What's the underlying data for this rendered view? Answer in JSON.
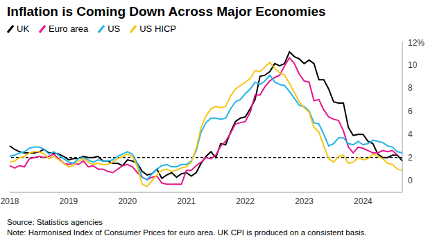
{
  "chart_data": {
    "type": "line",
    "title": "Inflation is Coming Down Across Major Economies",
    "source": "Source: Statistics agencies",
    "note": "Note: Harmonised Index of Consumer Prices for euro area. UK CPI is produced on a consistent basis.",
    "categories": [
      "2018",
      null,
      null,
      null,
      null,
      null,
      null,
      null,
      null,
      null,
      null,
      null,
      "2019",
      null,
      null,
      null,
      null,
      null,
      null,
      null,
      null,
      null,
      null,
      null,
      "2020",
      null,
      null,
      null,
      null,
      null,
      null,
      null,
      null,
      null,
      null,
      null,
      "2021",
      null,
      null,
      null,
      null,
      null,
      null,
      null,
      null,
      null,
      null,
      null,
      "2022",
      null,
      null,
      null,
      null,
      null,
      null,
      null,
      null,
      null,
      null,
      null,
      "2023",
      null,
      null,
      null,
      null,
      null,
      null,
      null,
      null,
      null,
      null,
      null,
      "2024",
      null,
      null,
      null,
      null,
      null,
      null,
      null,
      null
    ],
    "series": [
      {
        "name": "UK",
        "color": "#000000",
        "values": [
          3.0,
          2.7,
          2.5,
          2.4,
          2.4,
          2.4,
          2.5,
          2.7,
          2.4,
          2.4,
          2.3,
          2.1,
          1.8,
          1.9,
          1.9,
          2.1,
          2.0,
          2.0,
          2.1,
          1.7,
          1.7,
          1.5,
          1.5,
          1.3,
          1.8,
          1.7,
          1.5,
          0.8,
          0.5,
          0.6,
          1.0,
          0.2,
          0.5,
          0.7,
          0.3,
          0.6,
          0.7,
          0.4,
          0.7,
          1.5,
          2.1,
          2.5,
          2.0,
          3.2,
          3.1,
          4.2,
          5.1,
          5.4,
          5.5,
          6.2,
          7.0,
          9.0,
          9.1,
          9.4,
          10.1,
          9.9,
          10.1,
          11.1,
          10.7,
          10.5,
          10.1,
          10.4,
          10.1,
          8.7,
          8.7,
          7.9,
          6.8,
          6.7,
          6.7,
          4.6,
          3.9,
          4.0,
          4.0,
          3.4,
          3.2,
          2.3,
          2.0,
          2.0,
          2.2,
          2.2,
          1.7
        ]
      },
      {
        "name": "Euro area",
        "color": "#e6168a",
        "values": [
          1.3,
          1.1,
          1.3,
          1.2,
          1.9,
          2.0,
          2.1,
          2.0,
          2.1,
          2.3,
          1.9,
          1.5,
          1.4,
          1.5,
          1.4,
          1.7,
          1.2,
          1.3,
          1.0,
          1.0,
          0.8,
          0.7,
          1.0,
          1.3,
          1.4,
          1.2,
          0.7,
          0.3,
          0.1,
          0.3,
          0.4,
          -0.2,
          -0.3,
          -0.3,
          -0.3,
          -0.3,
          0.9,
          0.9,
          1.3,
          1.6,
          2.0,
          1.9,
          2.2,
          3.0,
          3.4,
          4.1,
          4.9,
          5.0,
          5.1,
          5.9,
          7.4,
          7.4,
          8.1,
          8.6,
          8.9,
          9.1,
          9.9,
          10.6,
          10.1,
          9.2,
          8.6,
          8.5,
          6.9,
          7.0,
          6.1,
          5.5,
          5.3,
          5.2,
          4.3,
          2.9,
          2.4,
          2.9,
          2.8,
          2.6,
          2.4,
          2.4,
          2.6,
          2.5,
          2.6,
          2.2,
          null
        ]
      },
      {
        "name": "US",
        "color": "#22b4e8",
        "values": [
          2.1,
          2.2,
          2.4,
          2.5,
          2.8,
          2.9,
          2.9,
          2.7,
          2.3,
          2.5,
          2.2,
          1.9,
          1.6,
          1.5,
          1.9,
          2.0,
          1.8,
          1.6,
          1.8,
          1.7,
          1.7,
          1.8,
          2.1,
          2.3,
          2.5,
          2.3,
          1.5,
          0.3,
          0.1,
          0.6,
          1.0,
          1.3,
          1.4,
          1.2,
          1.2,
          1.4,
          1.4,
          1.7,
          2.6,
          4.2,
          5.0,
          5.4,
          5.4,
          5.3,
          5.4,
          6.2,
          6.8,
          7.0,
          7.5,
          7.9,
          8.5,
          8.3,
          8.6,
          9.1,
          8.5,
          8.3,
          8.2,
          7.7,
          7.1,
          6.5,
          6.4,
          6.0,
          5.0,
          4.9,
          4.0,
          3.0,
          3.2,
          3.7,
          3.7,
          3.2,
          3.1,
          3.4,
          3.1,
          3.2,
          3.5,
          3.4,
          3.3,
          3.0,
          2.9,
          2.5,
          2.4
        ]
      },
      {
        "name": "US HICP",
        "color": "#f5c518",
        "values": [
          1.6,
          1.7,
          2.0,
          2.1,
          2.4,
          2.5,
          2.5,
          2.3,
          1.9,
          2.1,
          1.8,
          1.5,
          1.2,
          1.3,
          1.7,
          1.9,
          1.6,
          1.4,
          1.5,
          1.4,
          1.4,
          1.6,
          1.9,
          2.1,
          2.3,
          2.1,
          1.2,
          -0.3,
          -0.5,
          0.0,
          0.5,
          0.9,
          1.0,
          0.8,
          0.9,
          1.1,
          1.2,
          1.6,
          2.8,
          4.6,
          5.6,
          6.2,
          6.4,
          6.3,
          6.4,
          7.3,
          7.9,
          8.2,
          8.5,
          8.8,
          9.5,
          9.4,
          9.8,
          10.2,
          9.7,
          9.3,
          9.1,
          8.4,
          7.6,
          6.8,
          6.3,
          5.9,
          4.6,
          4.2,
          3.0,
          1.9,
          1.6,
          2.1,
          2.2,
          1.5,
          1.6,
          2.0,
          1.8,
          1.9,
          2.3,
          2.1,
          1.9,
          1.5,
          1.4,
          1.0,
          0.9
        ]
      }
    ],
    "ylim": [
      -1,
      12
    ],
    "yticks": [
      0,
      2,
      4,
      6,
      8,
      10,
      {
        "value": 12,
        "label": "12%"
      }
    ],
    "reference_line": 2
  }
}
